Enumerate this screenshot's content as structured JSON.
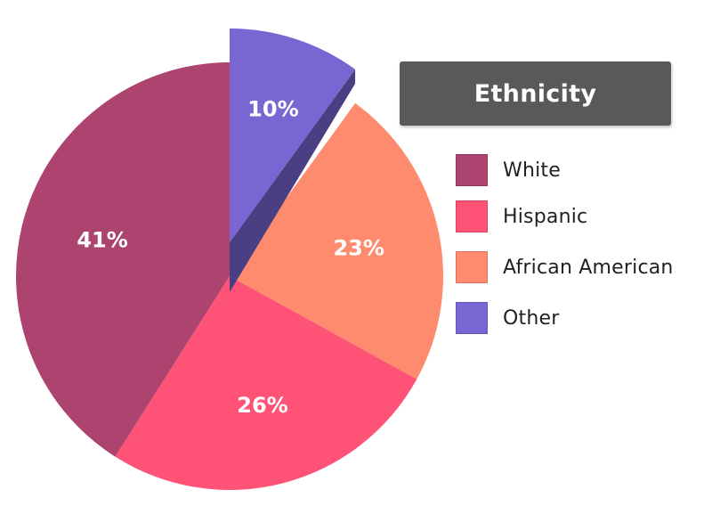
{
  "chart_data": {
    "type": "pie",
    "title": "Ethnicity",
    "legend_position": "right",
    "slices": [
      {
        "label": "White",
        "value": 41,
        "value_label": "41%",
        "color": "#ad4470"
      },
      {
        "label": "Hispanic",
        "value": 26,
        "value_label": "26%",
        "color": "#ff5277"
      },
      {
        "label": "African American",
        "value": 23,
        "value_label": "23%",
        "color": "#ff8b6f"
      },
      {
        "label": "Other",
        "value": 10,
        "value_label": "10%",
        "color": "#7966d3",
        "exploded": true
      }
    ]
  }
}
